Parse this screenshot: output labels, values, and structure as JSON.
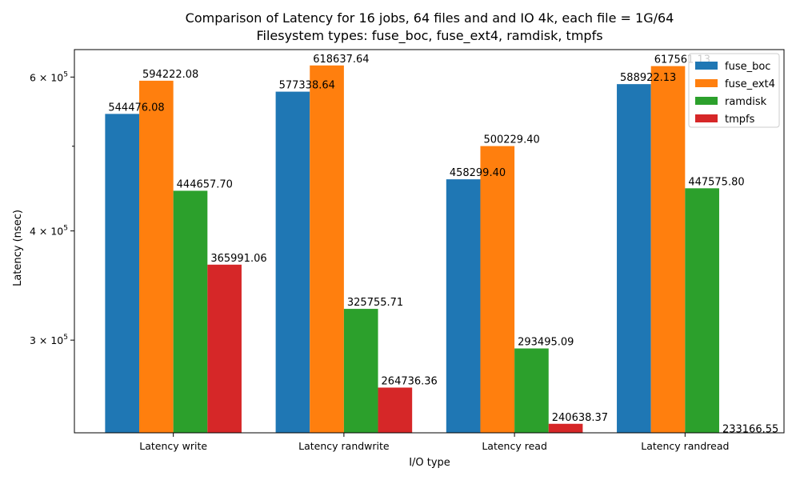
{
  "chart_data": {
    "type": "bar",
    "title_line1": "Comparison of Latency for 16 jobs, 64 files and  and IO 4k, each file = 1G/64",
    "title_line2": "Filesystem types: fuse_boc, fuse_ext4, ramdisk, tmpfs",
    "xlabel": "I/O type",
    "ylabel": "Latency (nsec)",
    "yscale": "log",
    "ylim": [
      235000,
      645000
    ],
    "yticks_major": [
      {
        "value": 300000,
        "mantissa": "3",
        "base": "10",
        "exp": "5"
      },
      {
        "value": 400000,
        "mantissa": "4",
        "base": "10",
        "exp": "5"
      },
      {
        "value": 600000,
        "mantissa": "6",
        "base": "10",
        "exp": "5"
      }
    ],
    "yticks_minor": [
      500000
    ],
    "categories": [
      "Latency write",
      "Latency randwrite",
      "Latency read",
      "Latency randread"
    ],
    "series": [
      {
        "name": "fuse_boc",
        "color": "#1f77b4",
        "values": [
          544476.08,
          577338.64,
          458299.4,
          588922.13
        ],
        "labels": [
          "544476.08",
          "577338.64",
          "458299.40",
          "588922.13"
        ]
      },
      {
        "name": "fuse_ext4",
        "color": "#ff7f0e",
        "values": [
          594222.08,
          618637.64,
          500229.4,
          617561.13
        ],
        "labels": [
          "594222.08",
          "618637.64",
          "500229.40",
          "617561.13"
        ]
      },
      {
        "name": "ramdisk",
        "color": "#2ca02c",
        "values": [
          444657.7,
          325755.71,
          293495.09,
          447575.8
        ],
        "labels": [
          "444657.70",
          "325755.71",
          "293495.09",
          "447575.80"
        ]
      },
      {
        "name": "tmpfs",
        "color": "#d62728",
        "values": [
          365991.06,
          264736.36,
          240638.37,
          233166.55
        ],
        "labels": [
          "365991.06",
          "264736.36",
          "240638.37",
          "233166.55"
        ]
      }
    ],
    "grid": false,
    "legend_position": "top-right"
  }
}
